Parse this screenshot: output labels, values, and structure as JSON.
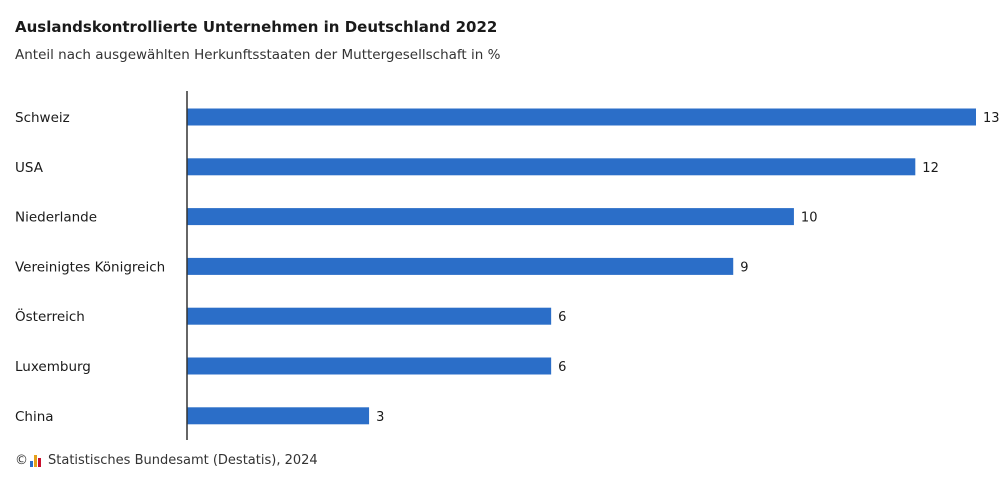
{
  "title": "Auslandskontrollierte Unternehmen in Deutschland 2022",
  "subtitle": "Anteil nach ausgewählten Herkunftsstaaten der Muttergesellschaft in %",
  "footer": {
    "copyright_symbol": "©",
    "source": "Statistisches Bundesamt (Destatis), 2024"
  },
  "colors": {
    "bar": "#2b6ec8",
    "axis": "#333333",
    "logo_colors": [
      "#2b6ec8",
      "#e4a11b",
      "#c8102e"
    ]
  },
  "chart_data": {
    "type": "bar",
    "orientation": "horizontal",
    "title": "Auslandskontrollierte Unternehmen in Deutschland 2022",
    "subtitle": "Anteil nach ausgewählten Herkunftsstaaten der Muttergesellschaft in %",
    "categories": [
      "Schweiz",
      "USA",
      "Niederlande",
      "Vereinigtes Königreich",
      "Österreich",
      "Luxemburg",
      "China"
    ],
    "values": [
      13,
      12,
      10,
      9,
      6,
      6,
      3
    ],
    "xlim": [
      0,
      13
    ],
    "data_labels": true,
    "grid": false,
    "legend": "none"
  }
}
